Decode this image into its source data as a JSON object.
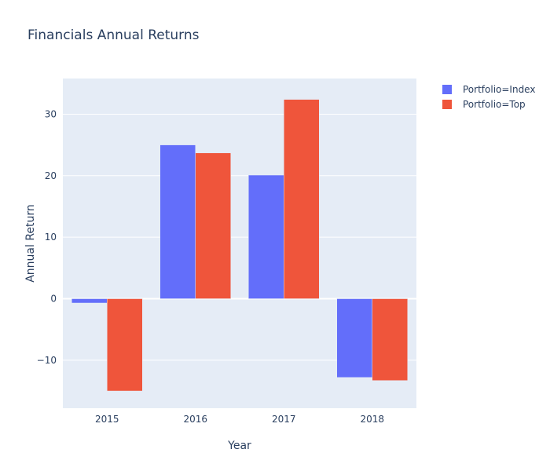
{
  "chart_data": {
    "type": "bar",
    "title": "Financials Annual Returns",
    "xlabel": "Year",
    "ylabel": "Annual Return",
    "categories": [
      "2015",
      "2016",
      "2017",
      "2018"
    ],
    "series": [
      {
        "name": "Portfolio=Index",
        "color": "#636efa",
        "values": [
          -0.7,
          25.0,
          20.1,
          -12.8
        ]
      },
      {
        "name": "Portfolio=Top",
        "color": "#ef553b",
        "values": [
          -15.0,
          23.7,
          32.4,
          -13.3
        ]
      }
    ],
    "ylim": [
      -17.8,
      35.8
    ],
    "yticks": [
      -10,
      0,
      10,
      20,
      30
    ],
    "ytick_labels": [
      "−10",
      "0",
      "10",
      "20",
      "30"
    ],
    "grid": true,
    "legend_position": "top-right",
    "plot_background": "#e5ecf6"
  }
}
